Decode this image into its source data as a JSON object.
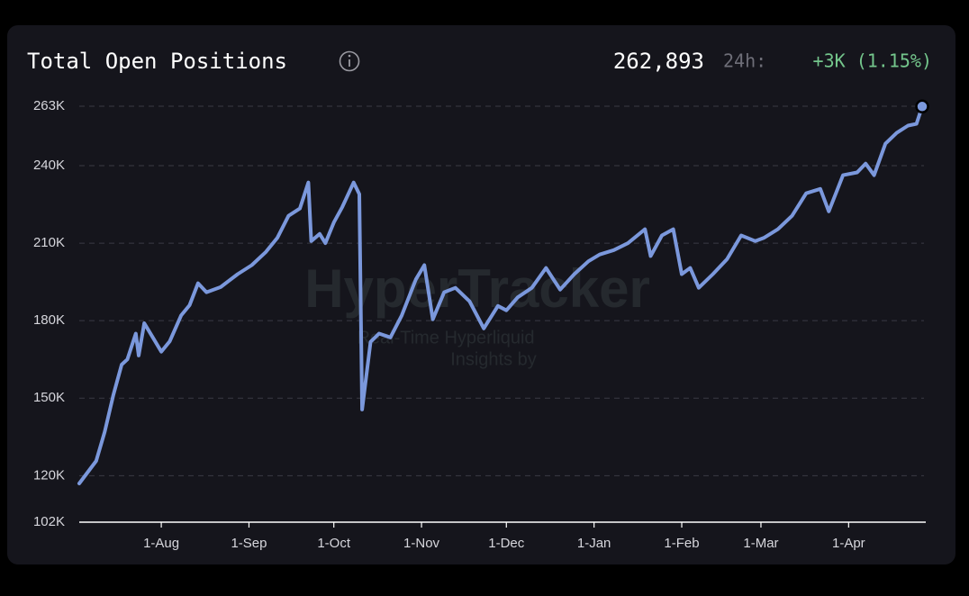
{
  "chart_data": {
    "type": "line",
    "title": "Total Open Positions",
    "summary": {
      "value": "262,893",
      "period": "24h:",
      "change": "+3K (1.15%)"
    },
    "watermark": {
      "title": "HyperTracker",
      "subtitle": "Real-Time Hyperliquid",
      "byline": "Insights by"
    },
    "x": [
      "3-Jul",
      "9-Jul",
      "12-Jul",
      "15-Jul",
      "18-Jul",
      "20-Jul",
      "23-Jul",
      "24-Jul",
      "26-Jul",
      "29-Jul",
      "1-Aug",
      "4-Aug",
      "8-Aug",
      "11-Aug",
      "14-Aug",
      "17-Aug",
      "22-Aug",
      "28-Aug",
      "2-Sep",
      "7-Sep",
      "11-Sep",
      "15-Sep",
      "19-Sep",
      "22-Sep",
      "23-Sep",
      "26-Sep",
      "28-Sep",
      "1-Oct",
      "4-Oct",
      "8-Oct",
      "10-Oct",
      "11-Oct",
      "14-Oct",
      "17-Oct",
      "21-Oct",
      "25-Oct",
      "30-Oct",
      "2-Nov",
      "5-Nov",
      "9-Nov",
      "13-Nov",
      "18-Nov",
      "23-Nov",
      "28-Nov",
      "1-Dec",
      "5-Dec",
      "10-Dec",
      "15-Dec",
      "20-Dec",
      "25-Dec",
      "30-Dec",
      "3-Jan",
      "8-Jan",
      "13-Jan",
      "19-Jan",
      "21-Jan",
      "25-Jan",
      "29-Jan",
      "1-Feb",
      "4-Feb",
      "7-Feb",
      "12-Feb",
      "17-Feb",
      "22-Feb",
      "27-Feb",
      "2-Mar",
      "7-Mar",
      "12-Mar",
      "17-Mar",
      "22-Mar",
      "25-Mar",
      "30-Mar",
      "4-Apr",
      "7-Apr",
      "10-Apr",
      "14-Apr",
      "18-Apr",
      "22-Apr",
      "25-Apr",
      "27-Apr"
    ],
    "series": [
      {
        "name": "Total Open Positions",
        "color": "#7b98dc",
        "values": [
          117000,
          125700,
          137000,
          151000,
          163000,
          165000,
          175000,
          166500,
          179000,
          173500,
          168000,
          172000,
          182000,
          186000,
          194500,
          191000,
          193000,
          198000,
          201500,
          206600,
          212000,
          220600,
          223400,
          233500,
          210800,
          213600,
          210000,
          218000,
          224000,
          233500,
          229000,
          145600,
          171800,
          175000,
          173500,
          182000,
          196000,
          201500,
          180500,
          191000,
          192700,
          187500,
          177000,
          185700,
          184000,
          189000,
          192700,
          200400,
          192000,
          198000,
          203000,
          205600,
          207300,
          210000,
          215400,
          205000,
          213000,
          215400,
          198000,
          200400,
          192700,
          198000,
          203800,
          213000,
          210800,
          212000,
          215400,
          220600,
          229300,
          231000,
          222300,
          236300,
          237400,
          240800,
          236300,
          248500,
          252700,
          255500,
          256200,
          262893
        ]
      }
    ],
    "ylim": [
      102000,
      263000
    ],
    "yticks": [
      {
        "value": 102000,
        "label": "102K"
      },
      {
        "value": 120000,
        "label": "120K"
      },
      {
        "value": 150000,
        "label": "150K"
      },
      {
        "value": 180000,
        "label": "180K"
      },
      {
        "value": 210000,
        "label": "210K"
      },
      {
        "value": 240000,
        "label": "240K"
      },
      {
        "value": 263000,
        "label": "263K"
      }
    ],
    "xticks": [
      "1-Aug",
      "1-Sep",
      "1-Oct",
      "1-Nov",
      "1-Dec",
      "1-Jan",
      "1-Feb",
      "1-Mar",
      "1-Apr"
    ],
    "grid": true
  }
}
